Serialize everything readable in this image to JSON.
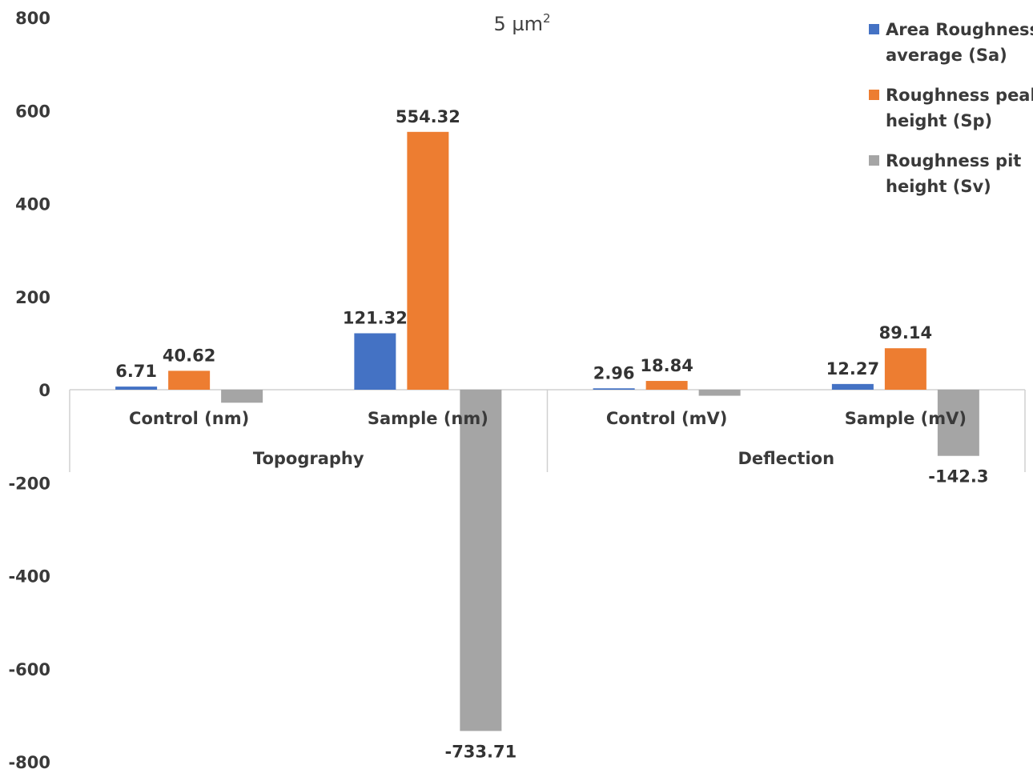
{
  "chart_data": {
    "type": "bar",
    "title": "5 µm",
    "title_superscript": "2",
    "ylim": [
      -800,
      800
    ],
    "yticks": [
      -800,
      -600,
      -400,
      -200,
      0,
      200,
      400,
      600,
      800
    ],
    "categories": [
      "Control  (nm)",
      "Sample (nm)",
      "Control  (mV)",
      "Sample (mV)"
    ],
    "groups": [
      {
        "label": "Topography",
        "categories": [
          0,
          1
        ]
      },
      {
        "label": "Deflection",
        "categories": [
          2,
          3
        ]
      }
    ],
    "series": [
      {
        "name": "Area Roughness average (Sa)",
        "legend_lines": [
          "Area Roughness",
          "average (Sa)"
        ],
        "color": "#4472C4",
        "values": [
          6.71,
          121.32,
          2.96,
          12.27
        ],
        "labels": [
          "6.71",
          "121.32",
          "2.96",
          "12.27"
        ]
      },
      {
        "name": "Roughness peak height (Sp)",
        "legend_lines": [
          "Roughness peak",
          "height (Sp)"
        ],
        "color": "#ED7D31",
        "values": [
          40.62,
          554.32,
          18.84,
          89.14
        ],
        "labels": [
          "40.62",
          "554.32",
          "18.84",
          "89.14"
        ]
      },
      {
        "name": "Roughness pit height (Sv)",
        "legend_lines": [
          "Roughness pit",
          "height (Sv)"
        ],
        "color": "#A5A5A5",
        "values": [
          -28,
          -733.71,
          -13,
          -142.3
        ],
        "labels": [
          "",
          "-733.71",
          "",
          "-142.3"
        ]
      }
    ],
    "legend": "right",
    "grid": false
  }
}
